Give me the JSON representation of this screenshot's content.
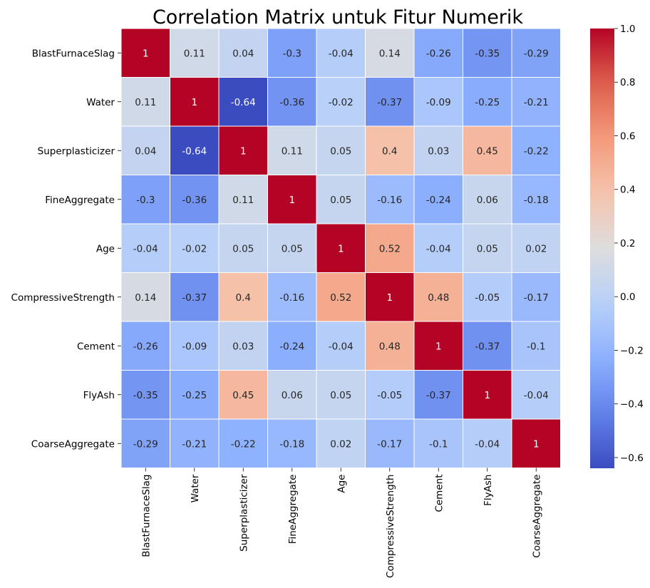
{
  "chart_data": {
    "type": "heatmap",
    "title": "Correlation Matrix untuk Fitur Numerik",
    "labels": [
      "BlastFurnaceSlag",
      "Water",
      "Superplasticizer",
      "FineAggregate",
      "Age",
      "CompressiveStrength",
      "Cement",
      "FlyAsh",
      "CoarseAggregate"
    ],
    "matrix": [
      [
        1,
        0.11,
        0.04,
        -0.3,
        -0.04,
        0.14,
        -0.26,
        -0.35,
        -0.29
      ],
      [
        0.11,
        1,
        -0.64,
        -0.36,
        -0.02,
        -0.37,
        -0.09,
        -0.25,
        -0.21
      ],
      [
        0.04,
        -0.64,
        1,
        0.11,
        0.05,
        0.4,
        0.03,
        0.45,
        -0.22
      ],
      [
        -0.3,
        -0.36,
        0.11,
        1,
        0.05,
        -0.16,
        -0.24,
        0.06,
        -0.18
      ],
      [
        -0.04,
        -0.02,
        0.05,
        0.05,
        1,
        0.52,
        -0.04,
        0.05,
        0.02
      ],
      [
        0.14,
        -0.37,
        0.4,
        -0.16,
        0.52,
        1,
        0.48,
        -0.05,
        -0.17
      ],
      [
        -0.26,
        -0.09,
        0.03,
        -0.24,
        -0.04,
        0.48,
        1,
        -0.37,
        -0.1
      ],
      [
        -0.35,
        -0.25,
        0.45,
        0.06,
        0.05,
        -0.05,
        -0.37,
        1,
        -0.04
      ],
      [
        -0.29,
        -0.21,
        -0.22,
        -0.18,
        0.02,
        -0.17,
        -0.1,
        -0.04,
        1
      ]
    ],
    "colormap": "coolwarm",
    "color_range": [
      -0.64,
      1.0
    ],
    "colorbar_ticks": [
      "1.0",
      "0.8",
      "0.6",
      "0.4",
      "0.2",
      "0.0",
      "−0.2",
      "−0.4",
      "−0.6"
    ],
    "colorbar_tick_values": [
      1.0,
      0.8,
      0.6,
      0.4,
      0.2,
      0.0,
      -0.2,
      -0.4,
      -0.6
    ],
    "annotations": true,
    "grid_line_color": "#ffffff"
  }
}
